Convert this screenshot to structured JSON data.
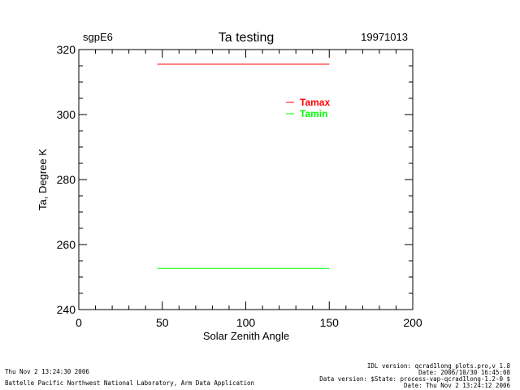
{
  "chart_data": {
    "type": "line",
    "title": "Ta testing",
    "site_label": "sgpE6",
    "date_label": "19971013",
    "xlabel": "Solar Zenith Angle",
    "ylabel": "Ta, Degree K",
    "xlim": [
      0,
      200
    ],
    "ylim": [
      240,
      320
    ],
    "xticks": [
      0,
      50,
      100,
      150,
      200
    ],
    "yticks": [
      240,
      260,
      280,
      300,
      320
    ],
    "x_minor_step": 10,
    "y_minor_step": 5,
    "grid": false,
    "legend_position": "top-right",
    "series": [
      {
        "name": "Tamax",
        "color": "#ff0000",
        "x": [
          47,
          150
        ],
        "y": [
          315.5,
          315.5
        ]
      },
      {
        "name": "Tamin",
        "color": "#00ff00",
        "x": [
          47,
          150
        ],
        "y": [
          252.7,
          252.7
        ]
      }
    ]
  },
  "footer": {
    "left_line1": "Thu Nov  2 13:24:30 2006",
    "left_line2": "Battelle Pacific Northwest National Laboratory, Arm Data Application",
    "right_line1": "IDL version: qcrad1long_plots.pro,v 1.8",
    "right_line2": "Date: 2006/10/30 16:45:08",
    "right_line3": "Data version: $State: process-vap-qcrad1long-1.2-0 $",
    "right_line4": "Date: Thu Nov  2 13:24:12 2006"
  }
}
